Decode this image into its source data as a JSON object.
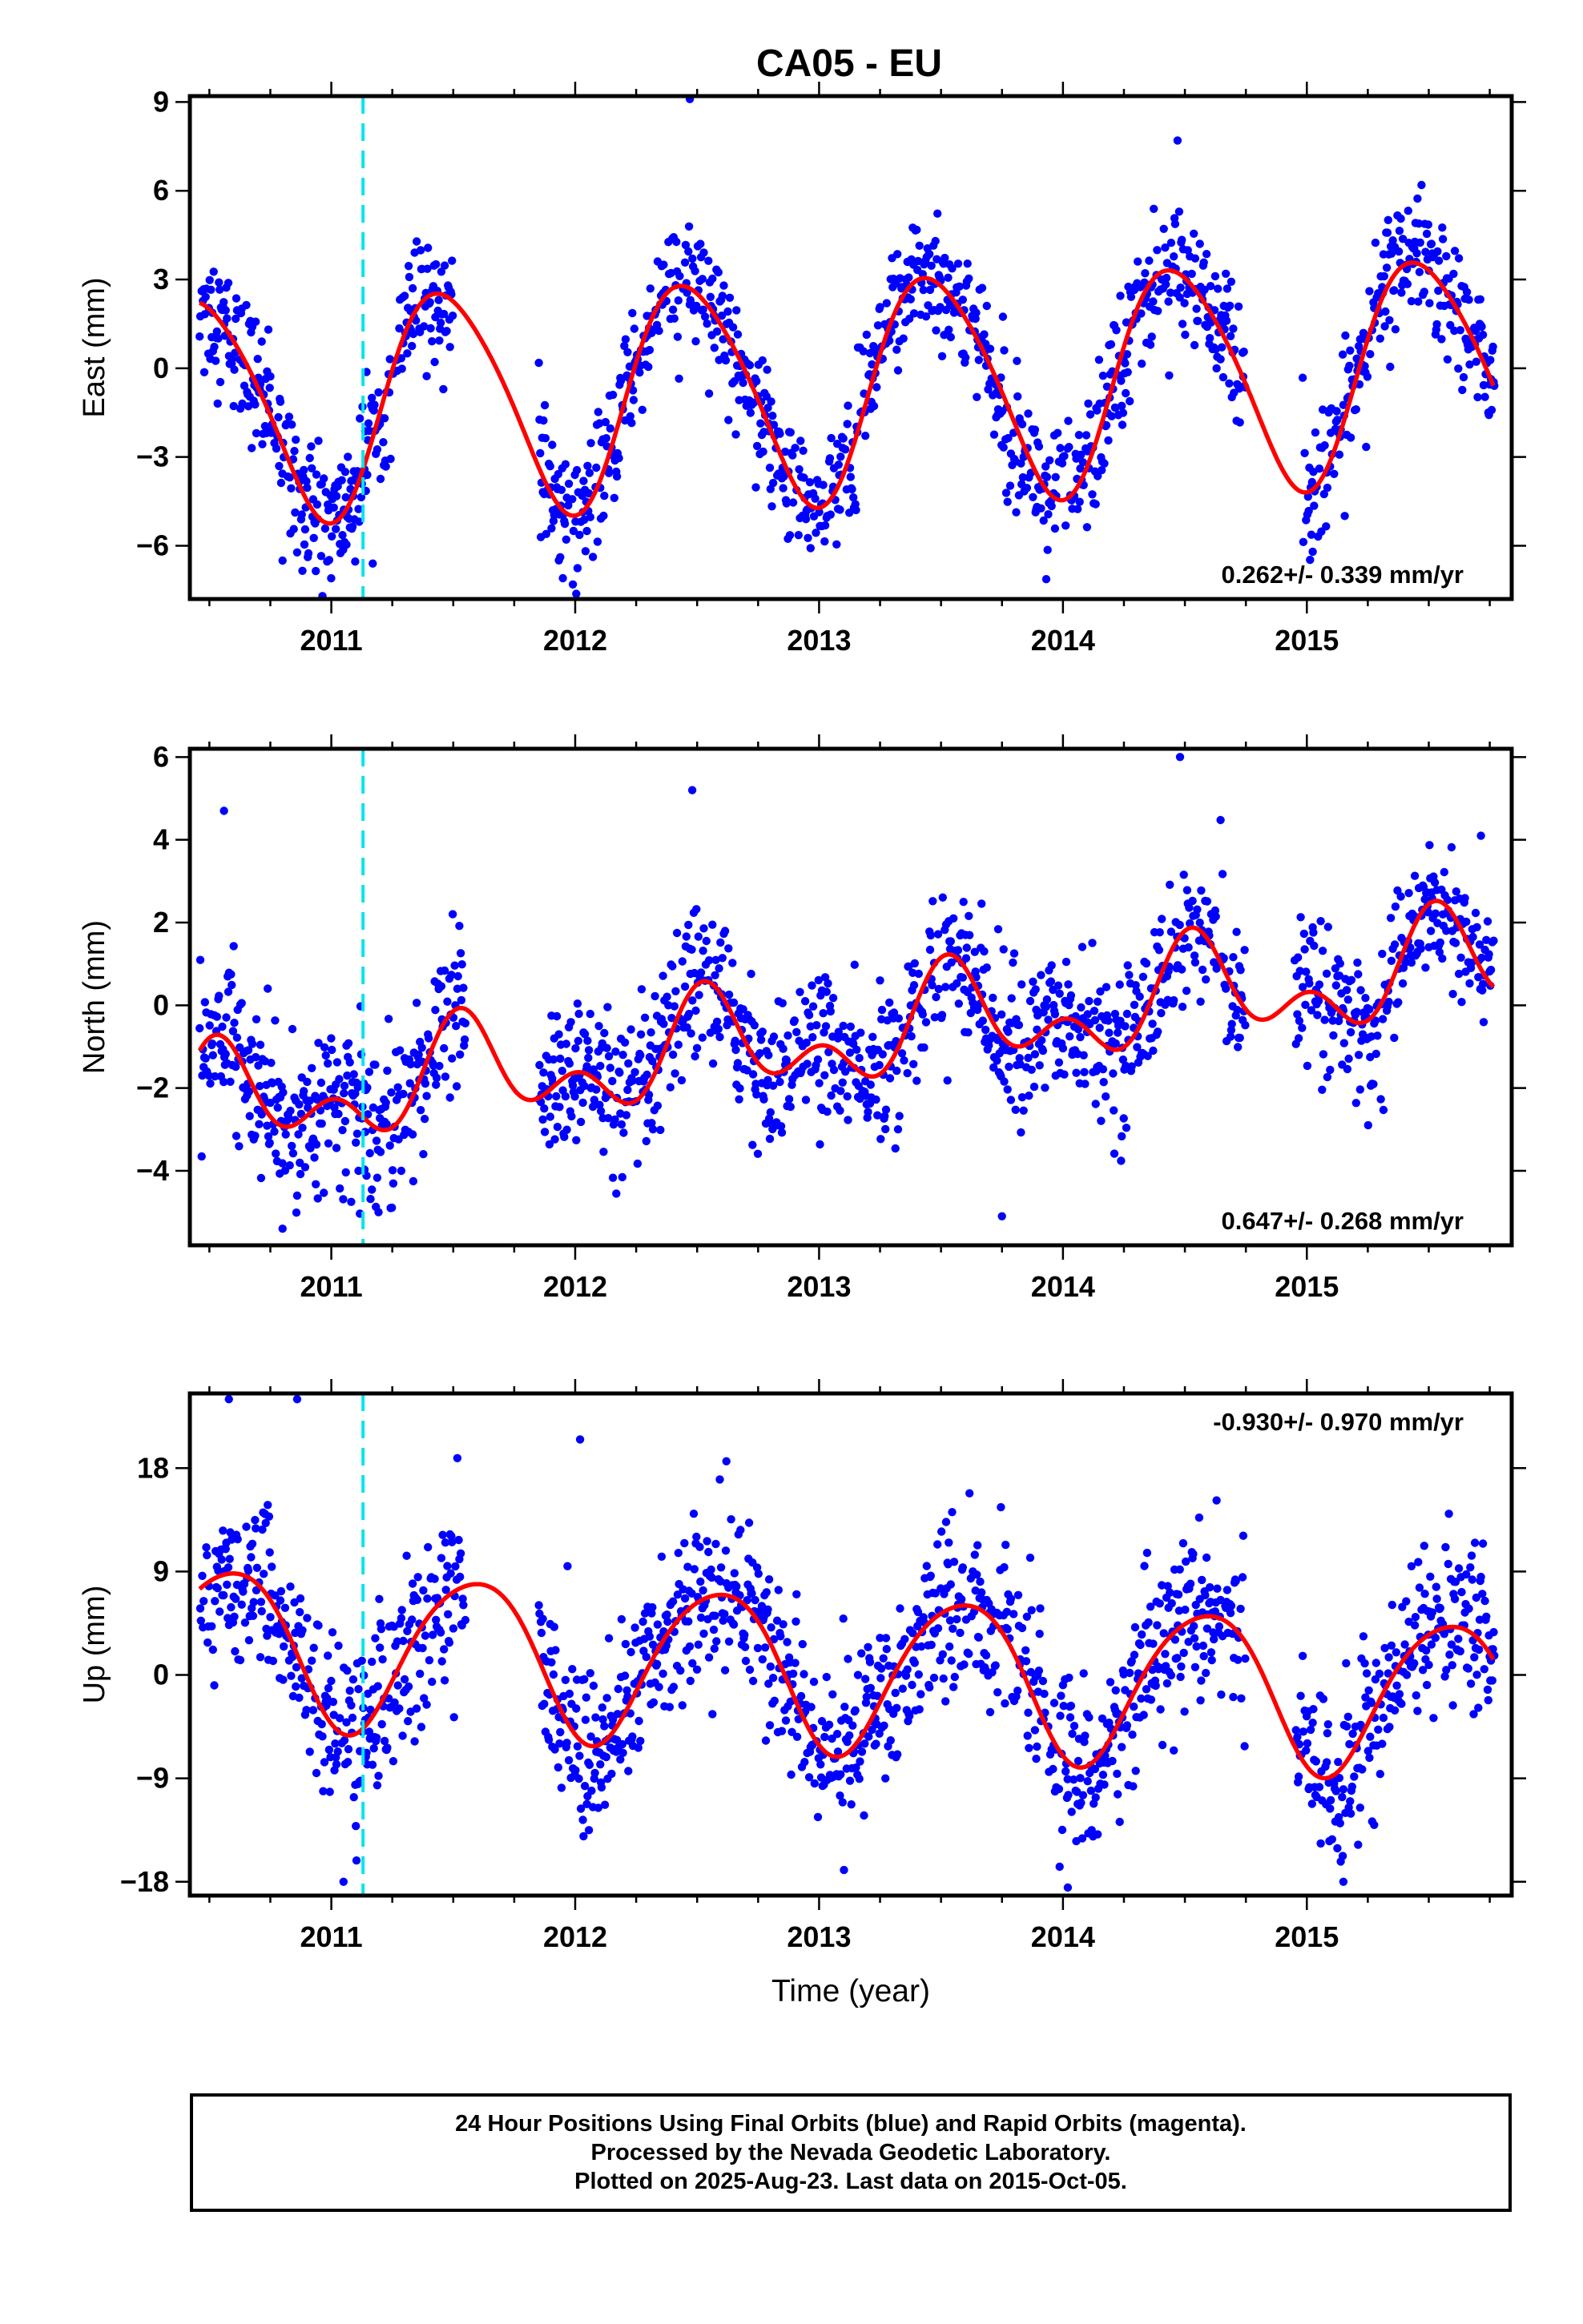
{
  "title": "CA05 - EU",
  "colors": {
    "final_orbits": "#0000ff",
    "model": "#ff0000",
    "event": "#00e5ee",
    "frame": "#000000"
  },
  "event_line_year": 2011.13,
  "chart_data": [
    {
      "type": "scatter",
      "ylabel": "East (mm)",
      "xlabel": "",
      "xlim": [
        2010.42,
        2015.84
      ],
      "ylim": [
        -7.8,
        9.2
      ],
      "xticks": [
        "2011",
        "2012",
        "2013",
        "2014",
        "2015"
      ],
      "yticks": [
        -6,
        -3,
        0,
        3,
        6,
        9
      ],
      "ytick_labels": [
        "−6",
        "−3",
        "0",
        "3",
        "6",
        "9"
      ],
      "rate_text": "0.262+/- 0.339 mm/yr",
      "rate_position": "bottom-right",
      "gaps": [
        [
          2011.5,
          2011.85
        ],
        [
          2014.75,
          2014.98
        ]
      ],
      "model": {
        "offset": -0.67,
        "rate": 0.262,
        "annual_amp": 3.75,
        "annual_peak": 2011.47,
        "semi_amp": 0.45,
        "semi_peak": 2011.3
      },
      "scatter_sigma": 1.1,
      "outliers": [
        [
          2012.47,
          9.1
        ],
        [
          2014.47,
          7.7
        ],
        [
          2010.8,
          -6.5
        ],
        [
          2011.17,
          -6.6
        ]
      ]
    },
    {
      "type": "scatter",
      "ylabel": "North (mm)",
      "xlabel": "",
      "xlim": [
        2010.42,
        2015.84
      ],
      "ylim": [
        -5.8,
        6.2
      ],
      "xticks": [
        "2011",
        "2012",
        "2013",
        "2014",
        "2015"
      ],
      "yticks": [
        -4,
        -2,
        0,
        2,
        4,
        6
      ],
      "ytick_labels": [
        "−4",
        "−2",
        "0",
        "2",
        "4",
        "6"
      ],
      "rate_text": "0.647+/- 0.268 mm/yr",
      "rate_position": "bottom-right",
      "gaps": [
        [
          2011.55,
          2011.85
        ],
        [
          2014.75,
          2014.95
        ]
      ],
      "model": {
        "offset": -0.8,
        "rate": 0.647,
        "annual_amp": 0.95,
        "annual_peak": 2011.55,
        "semi_amp": 0.75,
        "semi_peak": 2011.02
      },
      "scatter_sigma": 0.9,
      "outliers": [
        [
          2010.56,
          4.7
        ],
        [
          2012.48,
          5.2
        ],
        [
          2014.48,
          6.0
        ],
        [
          2010.8,
          -5.4
        ],
        [
          2013.75,
          -5.1
        ]
      ]
    },
    {
      "type": "scatter",
      "ylabel": "Up (mm)",
      "xlabel": "Time (year)",
      "xlim": [
        2010.42,
        2015.84
      ],
      "ylim": [
        -19.2,
        24.5
      ],
      "xticks": [
        "2011",
        "2012",
        "2013",
        "2014",
        "2015"
      ],
      "yticks": [
        -18,
        -9,
        0,
        9,
        18
      ],
      "ytick_labels": [
        "−18",
        "−9",
        "0",
        "9",
        "18"
      ],
      "rate_text": "-0.930+/- 0.970 mm/yr",
      "rate_position": "top-right",
      "gaps": [
        [
          2011.55,
          2011.85
        ],
        [
          2014.75,
          2014.95
        ]
      ],
      "model": {
        "offset": 0.5,
        "rate": -0.93,
        "annual_amp": 6.8,
        "annual_peak": 2011.58,
        "semi_amp": 0.8,
        "semi_peak": 2011.3
      },
      "scatter_sigma": 3.6,
      "outliers": [
        [
          2010.58,
          24.0
        ],
        [
          2010.86,
          24.0
        ],
        [
          2012.02,
          20.5
        ],
        [
          2012.62,
          18.6
        ],
        [
          2011.05,
          -18.0
        ],
        [
          2015.15,
          -18.0
        ],
        [
          2014.02,
          -18.5
        ]
      ]
    }
  ],
  "footer": {
    "line1": "24 Hour Positions Using Final Orbits (blue) and Rapid Orbits (magenta).",
    "line2": "Processed by the Nevada Geodetic Laboratory.",
    "line3": "Plotted on 2025-Aug-23. Last data on 2015-Oct-05."
  }
}
